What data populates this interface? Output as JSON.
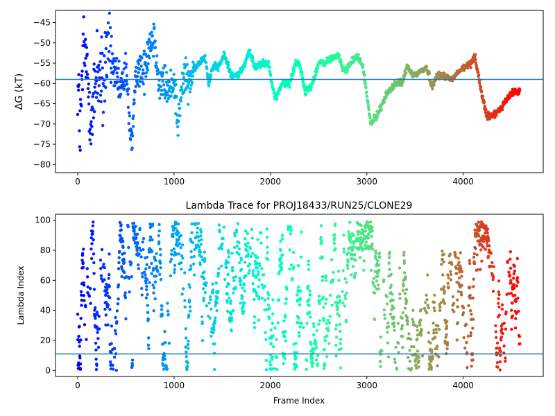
{
  "chart_data": [
    {
      "type": "scatter",
      "title": "",
      "xlabel": "",
      "ylabel": "ΔG (kT)",
      "xlim": [
        -230,
        4830
      ],
      "ylim": [
        -82,
        -42
      ],
      "xticks": [
        0,
        1000,
        2000,
        3000,
        4000
      ],
      "xtick_labels": [
        "0",
        "1000",
        "2000",
        "3000",
        "4000"
      ],
      "yticks": [
        -80,
        -75,
        -70,
        -65,
        -60,
        -55,
        -50,
        -45
      ],
      "ytick_labels": [
        "−80",
        "−75",
        "−70",
        "−65",
        "−60",
        "−55",
        "−50",
        "−45"
      ],
      "hline": -59,
      "hline_color": "#1f77b4",
      "colormap": "rainbow (red at frame 0 → violet at last frame)",
      "n_frames": 4590,
      "trace_keypoints": {
        "x": [
          0,
          30,
          60,
          100,
          150,
          200,
          260,
          320,
          380,
          440,
          500,
          560,
          580,
          620,
          680,
          740,
          800,
          840,
          900,
          960,
          1000,
          1040,
          1060,
          1100,
          1150,
          1200,
          1260,
          1320,
          1360,
          1400,
          1460,
          1520,
          1600,
          1660,
          1720,
          1780,
          1840,
          1900,
          1980,
          2050,
          2120,
          2200,
          2260,
          2300,
          2360,
          2420,
          2500,
          2560,
          2620,
          2700,
          2760,
          2840,
          2900,
          2960,
          3000,
          3040,
          3100,
          3160,
          3220,
          3300,
          3360,
          3420,
          3480,
          3560,
          3620,
          3680,
          3720,
          3800,
          3880,
          3960,
          4020,
          4080,
          4120,
          4180,
          4240,
          4300,
          4360,
          4420,
          4480,
          4530,
          4590
        ],
        "y": [
          -60,
          -72,
          -50,
          -58,
          -70,
          -55,
          -62,
          -48,
          -58,
          -62,
          -57,
          -75,
          -68,
          -55,
          -58,
          -50,
          -48,
          -60,
          -60,
          -62,
          -58,
          -70,
          -66,
          -58,
          -60,
          -57,
          -55,
          -53,
          -60,
          -56,
          -56,
          -53,
          -58,
          -58,
          -56,
          -52,
          -56,
          -55,
          -55,
          -64,
          -60,
          -60,
          -55,
          -55,
          -62,
          -61,
          -55,
          -55,
          -54,
          -53,
          -57,
          -55,
          -53,
          -56,
          -63,
          -70,
          -68,
          -65,
          -62,
          -60,
          -60,
          -56,
          -58,
          -57,
          -56,
          -61,
          -58,
          -58,
          -59,
          -57,
          -56,
          -55,
          -53,
          -61,
          -68,
          -68,
          -67,
          -65,
          -63,
          -62,
          -62
        ]
      }
    },
    {
      "type": "scatter",
      "title": "Lambda Trace for PROJ18433/RUN25/CLONE29",
      "xlabel": "Frame Index",
      "ylabel": "Lambda Index",
      "xlim": [
        -230,
        4830
      ],
      "ylim": [
        -4,
        104
      ],
      "xticks": [
        0,
        1000,
        2000,
        3000,
        4000
      ],
      "xtick_labels": [
        "0",
        "1000",
        "2000",
        "3000",
        "4000"
      ],
      "yticks": [
        0,
        20,
        40,
        60,
        80,
        100
      ],
      "ytick_labels": [
        "0",
        "20",
        "40",
        "60",
        "80",
        "100"
      ],
      "hline": 11,
      "hline_color": "#1f77b4",
      "colormap": "rainbow (red at frame 0 → violet at last frame)",
      "n_frames": 4590,
      "value_range": [
        0,
        99
      ],
      "dense_high_bands": [
        [
          2900,
          3060
        ],
        [
          4120,
          4270
        ]
      ]
    }
  ]
}
